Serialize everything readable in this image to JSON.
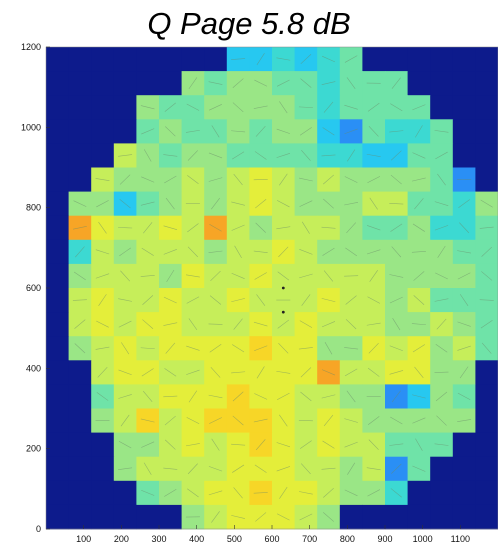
{
  "chart_data": {
    "type": "heatmap",
    "title": "Q Page 5.8 dB",
    "xlabel": "",
    "ylabel": "",
    "xlim": [
      0,
      1200
    ],
    "ylim": [
      0,
      1200
    ],
    "x_ticks": [
      100,
      200,
      300,
      400,
      500,
      600,
      700,
      800,
      900,
      1000,
      1100
    ],
    "y_ticks": [
      0,
      200,
      400,
      600,
      800,
      1000,
      1200
    ],
    "grid": false,
    "background_color": "#0d1b8c",
    "cell_size": 60,
    "color_key": {
      "N": "#0d1b8c",
      "A": "#2a8ff5",
      "B": "#27c8f0",
      "C": "#3cd9d2",
      "D": "#6fe3a8",
      "E": "#9ae686",
      "F": "#c6ee5a",
      "G": "#e4ee3a",
      "H": "#f7d627",
      "I": "#f7a526"
    },
    "grid_rows_top_to_bottom": [
      "NNNNNNNNBBCBCDNNNNNN",
      "NNNNNNEDEEDDCDDDNNNN",
      "NNNNEDDEEEEDCDDDDNNN",
      "NNNNDEDDEDEEBADCCDNN",
      "NNNFEDEEDDDDCCBBDDNN",
      "NNFEEEFEFGFEFEEEEDAN",
      "NEEBDEFEFGFEEEFFDDCE",
      "NIGFFGFIFEFFFEDDECCD",
      "NCFEFFFEFFGFEEEEEEDD",
      "NEFFFEGFFGFFFFFEEEED",
      "NFGFFGFFGFFFGFFEFDDD",
      "NFGFGGFFFGFGFFFEEFED",
      "NEFGFGGGGHGGEEGFGEFD",
      "NNFGGFFGGGGGIFFGGEEN",
      "NNDFFGGGHGGFFEEABEDN",
      "NNEFHFGHHHGFGFEEEEEN",
      "NNNEEFGFGHGFGFFDDDNN",
      "NNNEFFFFGGGFFEFADNNN",
      "NNNNDEFGGHGGFEECNNNN",
      "NNNNNNEFGGGFENNNNNNN"
    ],
    "markers": [
      {
        "x": 630,
        "y": 600
      },
      {
        "x": 630,
        "y": 540
      }
    ]
  }
}
